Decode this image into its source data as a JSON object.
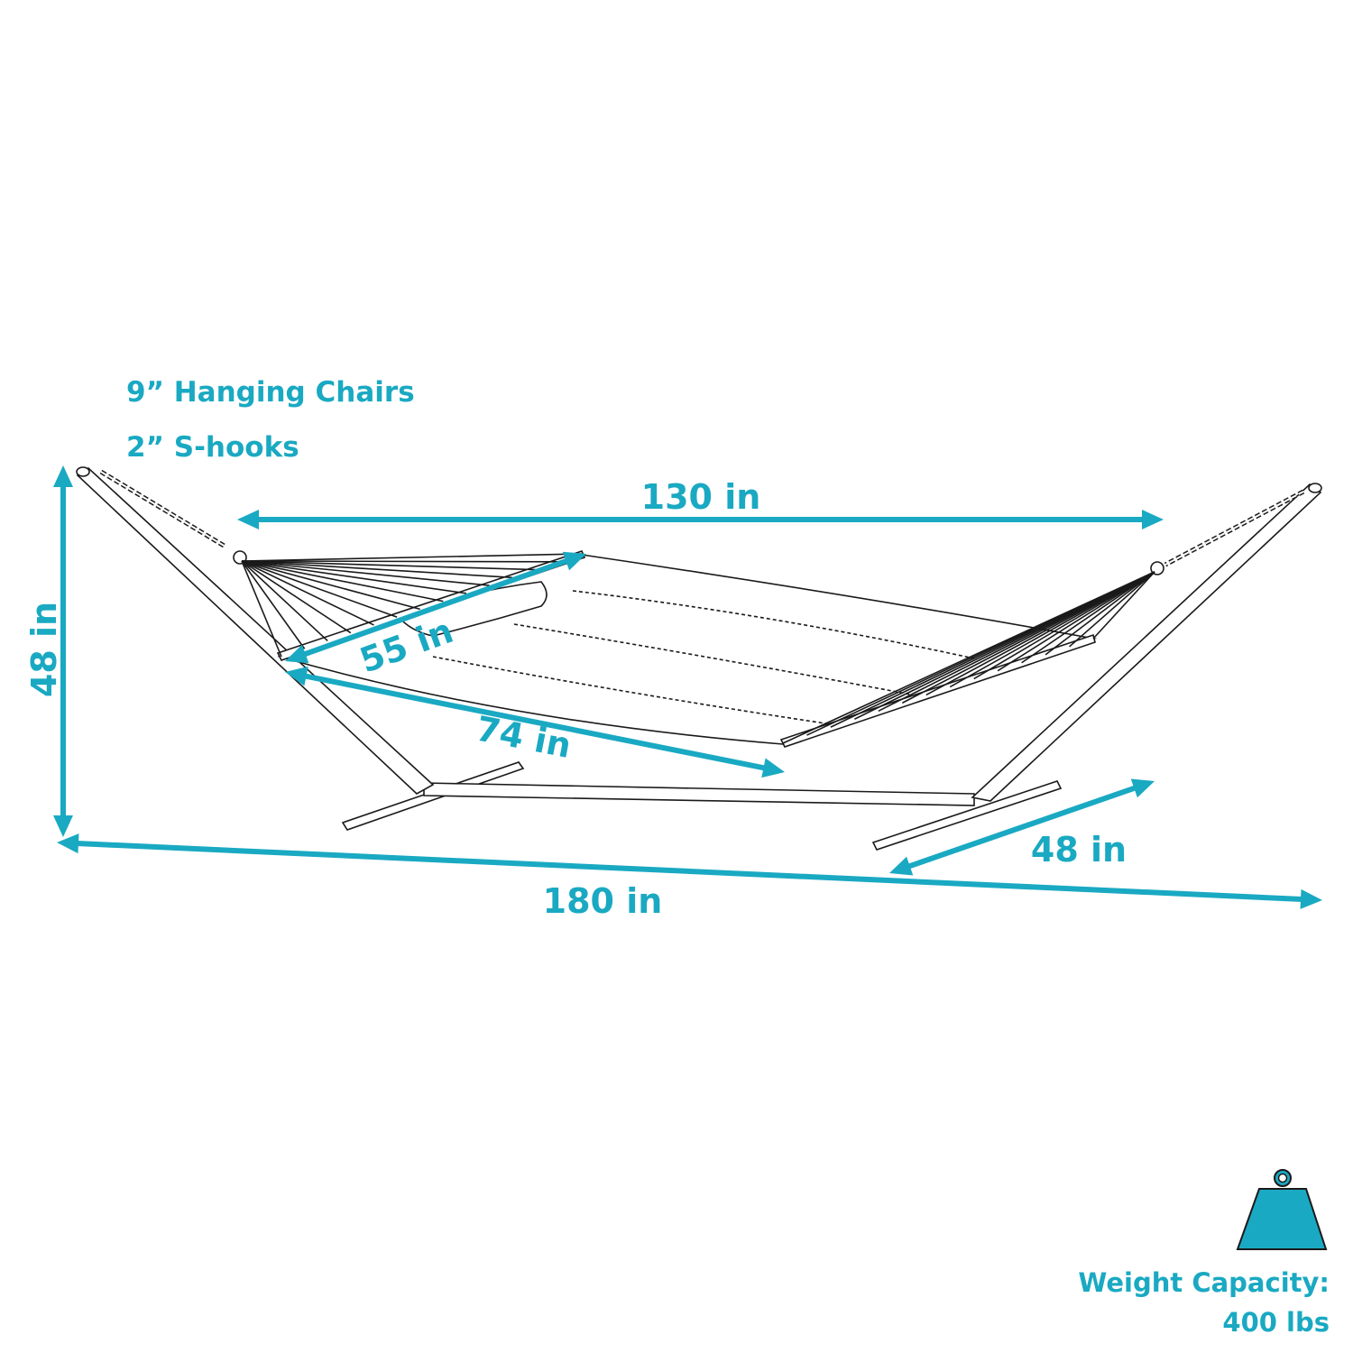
{
  "notes": {
    "hanging_chairs": "9” Hanging Chairs",
    "s_hooks": "2” S-hooks"
  },
  "dimensions": {
    "height": "48 in",
    "total_length": "180 in",
    "hammock_length": "130 in",
    "bed_width": "55 in",
    "bed_length": "74 in",
    "base_width": "48 in"
  },
  "weight": {
    "label": "Weight Capacity:",
    "value": "400 lbs",
    "icon": "weight-icon"
  },
  "colors": {
    "accent": "#1aa9c2",
    "line": "#1a1a1a"
  }
}
